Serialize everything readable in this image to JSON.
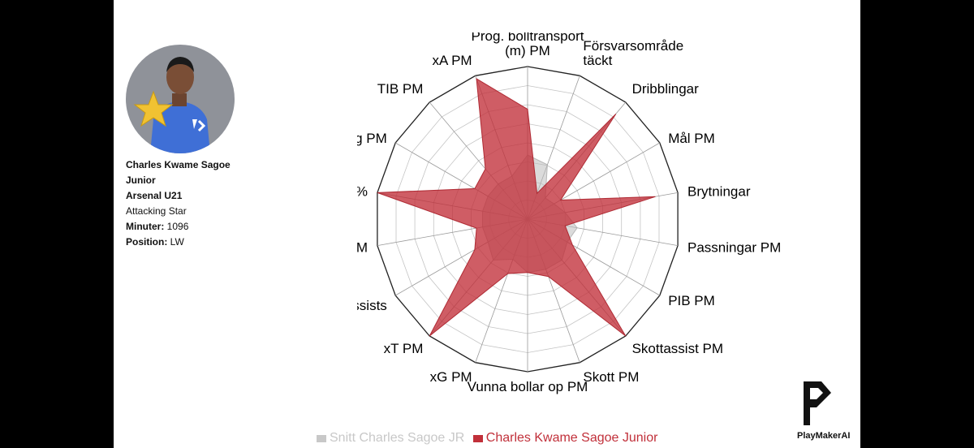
{
  "player": {
    "name": "Charles Kwame Sagoe Junior",
    "team": "Arsenal U21",
    "role": "Attacking Star",
    "minutes_label": "Minuter:",
    "minutes_value": "1096",
    "position_label": "Position:",
    "position_value": "LW"
  },
  "brand": {
    "name": "PlayMakerAI"
  },
  "colors": {
    "player_series": "#c1303a",
    "average_series": "#c8c8c8",
    "legend_average_text": "#c8c8c8",
    "legend_player_text": "#c1303a"
  },
  "chart_data": {
    "type": "radar",
    "range": [
      0,
      100
    ],
    "grid": true,
    "legend_position": "bottom",
    "axes": [
      [
        "Prog. bolltransport",
        "(m) PM"
      ],
      [
        "Försvarsområde",
        "täckt"
      ],
      [
        "Dribblingar"
      ],
      [
        "Mål PM"
      ],
      [
        "Brytningar"
      ],
      [
        "Passningar PM"
      ],
      [
        "PIB PM"
      ],
      [
        "Skottassist PM"
      ],
      [
        "Skott PM"
      ],
      [
        "Vunna bollar op PM"
      ],
      [
        "xG PM"
      ],
      [
        "xT PM"
      ],
      [
        "Assists"
      ],
      [
        "Inlägg PM"
      ],
      [
        "Inlägg %"
      ],
      [
        "Poäng PM"
      ],
      [
        "TIB PM"
      ],
      [
        "xA PM"
      ]
    ],
    "series": [
      {
        "name": "Snitt Charles Sagoe JR",
        "values": [
          42,
          38,
          18,
          20,
          25,
          33,
          30,
          35,
          35,
          35,
          28,
          35,
          30,
          30,
          30,
          30,
          30,
          30
        ]
      },
      {
        "name": "Charles Kwame Sagoe Junior",
        "values": [
          72,
          18,
          90,
          25,
          85,
          25,
          34,
          100,
          40,
          35,
          38,
          100,
          40,
          34,
          100,
          40,
          43,
          98
        ]
      }
    ]
  }
}
